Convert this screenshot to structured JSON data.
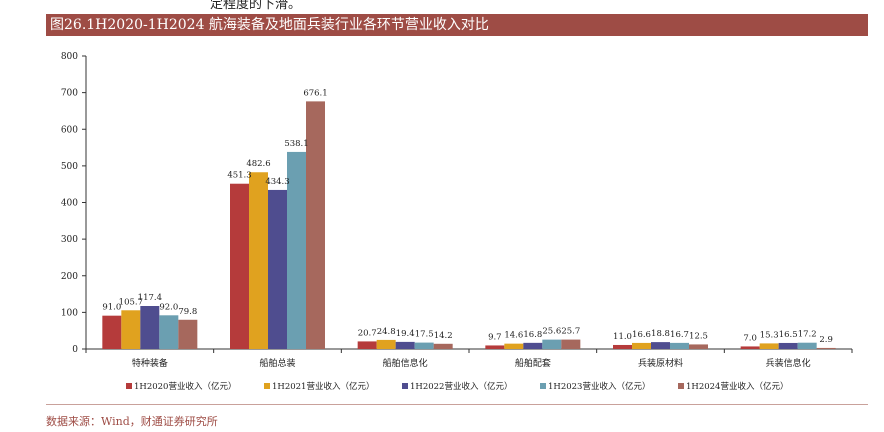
{
  "header": {
    "top_snippet": "定程度的下滑。",
    "title": "图26.1H2020-1H2024 航海装备及地面兵装行业各环节营业收入对比"
  },
  "footer": {
    "source": "数据来源：Wind，财通证券研究所"
  },
  "colors": {
    "title_bg": "#9e4c45",
    "s2020": "#b53b3b",
    "s2021": "#e0a21f",
    "s2022": "#4f4d8f",
    "s2023": "#6b9fb1",
    "s2024": "#a6685d"
  },
  "chart_data": {
    "type": "bar",
    "categories": [
      "特种装备",
      "船舶总装",
      "船舶信息化",
      "船舶配套",
      "兵装原材料",
      "兵装信息化"
    ],
    "series": [
      {
        "name": "1H2020营业收入（亿元）",
        "values": [
          91.0,
          451.3,
          20.7,
          9.7,
          11.0,
          7.0
        ]
      },
      {
        "name": "1H2021营业收入（亿元）",
        "values": [
          105.7,
          482.6,
          24.8,
          14.6,
          16.6,
          15.3
        ]
      },
      {
        "name": "1H2022营业收入（亿元）",
        "values": [
          117.4,
          434.3,
          19.4,
          16.8,
          18.8,
          16.5
        ]
      },
      {
        "name": "1H2023营业收入（亿元）",
        "values": [
          92.0,
          538.1,
          17.5,
          25.6,
          16.7,
          17.2
        ]
      },
      {
        "name": "1H2024营业收入（亿元）",
        "values": [
          79.8,
          676.1,
          14.2,
          25.7,
          12.5,
          2.9
        ]
      }
    ],
    "ylim": [
      0,
      800
    ],
    "yticks": [
      0,
      100,
      200,
      300,
      400,
      500,
      600,
      700,
      800
    ],
    "grid": false,
    "legend_position": "bottom"
  }
}
